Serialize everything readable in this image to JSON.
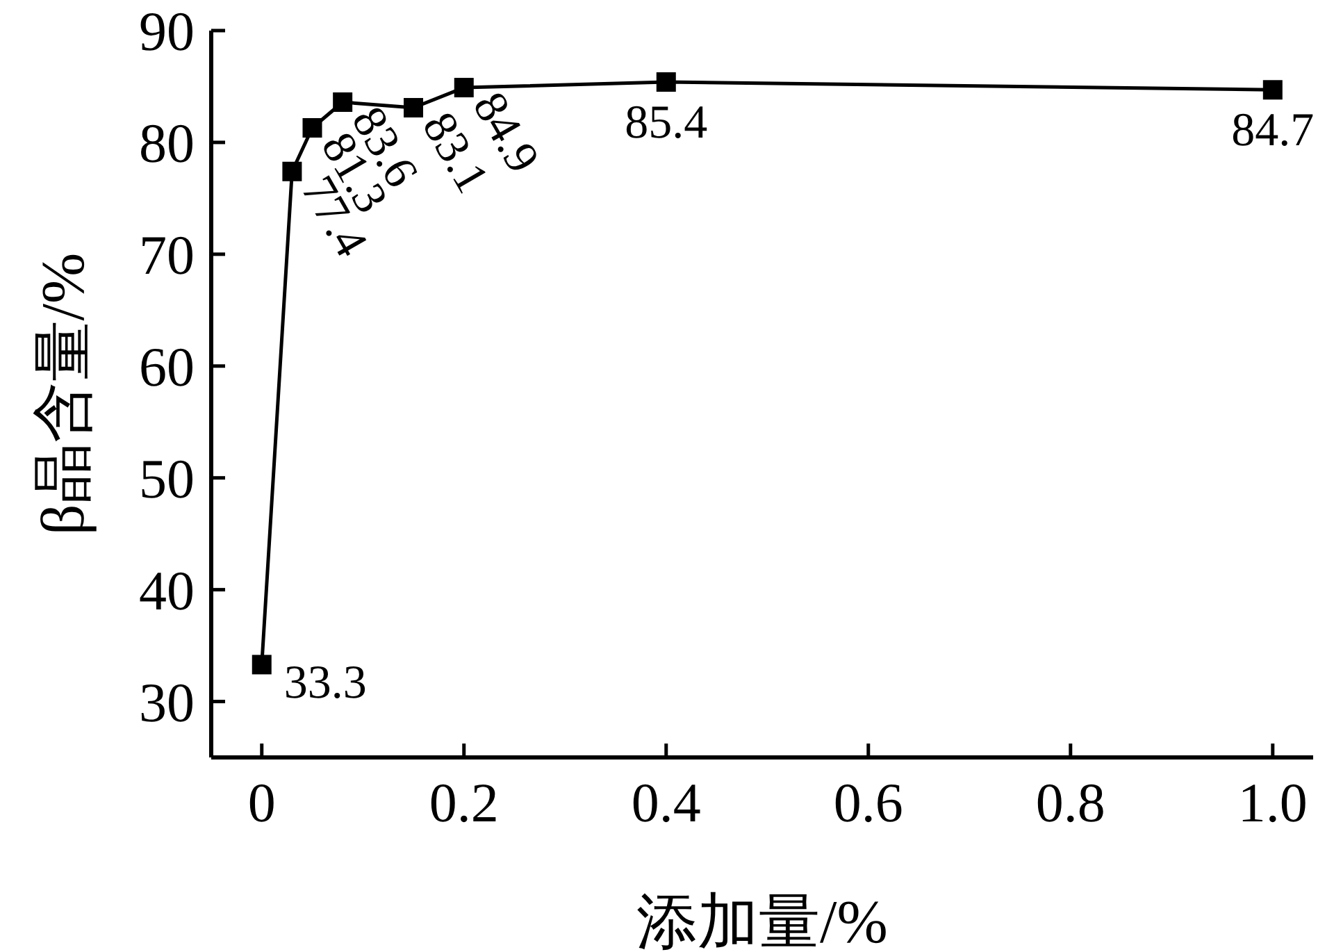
{
  "chart_data": {
    "type": "line",
    "xlabel": "添加量/%",
    "ylabel": "β晶含量/%",
    "x": [
      0,
      0.03,
      0.05,
      0.08,
      0.15,
      0.2,
      0.4,
      1.0
    ],
    "series": [
      {
        "color": "#000000",
        "values": [
          33.3,
          77.4,
          81.3,
          83.6,
          83.1,
          84.9,
          85.4,
          84.7
        ]
      }
    ],
    "xlim": [
      -0.05,
      1.04
    ],
    "xticks": [
      0,
      0.2,
      0.4,
      0.6,
      0.8,
      {
        "value": 1.0,
        "label": "1.0"
      }
    ],
    "ylim": [
      25,
      90
    ],
    "yticks": [
      30,
      40,
      50,
      60,
      70,
      80,
      90
    ],
    "marker": "square",
    "line_style": "solid",
    "data_labels": true,
    "grid": false
  }
}
